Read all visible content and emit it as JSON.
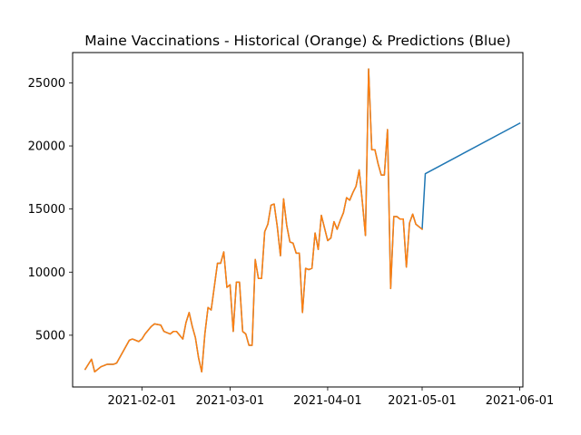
{
  "chart_data": {
    "type": "line",
    "title": "Maine Vaccinations - Historical (Orange) & Predictions (Blue)",
    "xlabel": "",
    "ylabel": "",
    "x_type": "date",
    "xlim": [
      "2021-01-10",
      "2021-06-02"
    ],
    "ylim": [
      900,
      27400
    ],
    "x_ticks": [
      "2021-02-01",
      "2021-03-01",
      "2021-04-01",
      "2021-05-01",
      "2021-06-01"
    ],
    "y_ticks": [
      5000,
      10000,
      15000,
      20000,
      25000
    ],
    "grid": false,
    "legend": "none",
    "series": [
      {
        "color": "#1f77b4",
        "x": [
          "2021-01-14",
          "2021-01-16",
          "2021-01-17",
          "2021-01-19",
          "2021-01-21",
          "2021-01-23",
          "2021-01-24",
          "2021-01-26",
          "2021-01-28",
          "2021-01-29",
          "2021-01-31",
          "2021-02-01",
          "2021-02-02",
          "2021-02-04",
          "2021-02-05",
          "2021-02-07",
          "2021-02-08",
          "2021-02-10",
          "2021-02-11",
          "2021-02-12",
          "2021-02-14",
          "2021-02-15",
          "2021-02-16",
          "2021-02-17",
          "2021-02-18",
          "2021-02-19",
          "2021-02-20",
          "2021-02-21",
          "2021-02-22",
          "2021-02-23",
          "2021-02-25",
          "2021-02-26",
          "2021-02-27",
          "2021-02-28",
          "2021-03-01",
          "2021-03-02",
          "2021-03-03",
          "2021-03-04",
          "2021-03-05",
          "2021-03-06",
          "2021-03-07",
          "2021-03-08",
          "2021-03-09",
          "2021-03-10",
          "2021-03-11",
          "2021-03-12",
          "2021-03-13",
          "2021-03-14",
          "2021-03-15",
          "2021-03-16",
          "2021-03-17",
          "2021-03-18",
          "2021-03-19",
          "2021-03-20",
          "2021-03-21",
          "2021-03-22",
          "2021-03-23",
          "2021-03-24",
          "2021-03-25",
          "2021-03-26",
          "2021-03-27",
          "2021-03-28",
          "2021-03-29",
          "2021-03-30",
          "2021-04-01",
          "2021-04-02",
          "2021-04-03",
          "2021-04-04",
          "2021-04-05",
          "2021-04-06",
          "2021-04-07",
          "2021-04-08",
          "2021-04-09",
          "2021-04-10",
          "2021-04-11",
          "2021-04-12",
          "2021-04-13",
          "2021-04-14",
          "2021-04-15",
          "2021-04-16",
          "2021-04-17",
          "2021-04-18",
          "2021-04-19",
          "2021-04-20",
          "2021-04-21",
          "2021-04-22",
          "2021-04-23",
          "2021-04-24",
          "2021-04-25",
          "2021-04-26",
          "2021-04-27",
          "2021-04-28",
          "2021-04-29",
          "2021-04-30",
          "2021-05-01",
          "2021-05-02",
          "2021-06-01"
        ],
        "y": [
          2300,
          3100,
          2100,
          2500,
          2700,
          2700,
          2800,
          3700,
          4600,
          4700,
          4500,
          4700,
          5100,
          5700,
          5900,
          5800,
          5300,
          5100,
          5300,
          5300,
          4700,
          6000,
          6800,
          5700,
          4800,
          3200,
          2100,
          5100,
          7200,
          7000,
          10700,
          10700,
          11600,
          8800,
          9000,
          5300,
          9200,
          9200,
          5300,
          5100,
          4200,
          4200,
          11000,
          9500,
          9500,
          13200,
          13800,
          15300,
          15400,
          13600,
          11300,
          15800,
          13700,
          12400,
          12300,
          11500,
          11500,
          6800,
          10300,
          10200,
          10300,
          13100,
          11800,
          14500,
          12500,
          12700,
          14000,
          13400,
          14100,
          14700,
          15900,
          15700,
          16300,
          16800,
          18100,
          15600,
          12900,
          26100,
          19700,
          19700,
          18600,
          17700,
          17700,
          21300,
          8700,
          14400,
          14400,
          14200,
          14200,
          10400,
          13900,
          14600,
          13800,
          13600,
          13400,
          17800,
          21800
        ]
      },
      {
        "color": "#ff7f0e",
        "x": [
          "2021-01-14",
          "2021-01-16",
          "2021-01-17",
          "2021-01-19",
          "2021-01-21",
          "2021-01-23",
          "2021-01-24",
          "2021-01-26",
          "2021-01-28",
          "2021-01-29",
          "2021-01-31",
          "2021-02-01",
          "2021-02-02",
          "2021-02-04",
          "2021-02-05",
          "2021-02-07",
          "2021-02-08",
          "2021-02-10",
          "2021-02-11",
          "2021-02-12",
          "2021-02-14",
          "2021-02-15",
          "2021-02-16",
          "2021-02-17",
          "2021-02-18",
          "2021-02-19",
          "2021-02-20",
          "2021-02-21",
          "2021-02-22",
          "2021-02-23",
          "2021-02-25",
          "2021-02-26",
          "2021-02-27",
          "2021-02-28",
          "2021-03-01",
          "2021-03-02",
          "2021-03-03",
          "2021-03-04",
          "2021-03-05",
          "2021-03-06",
          "2021-03-07",
          "2021-03-08",
          "2021-03-09",
          "2021-03-10",
          "2021-03-11",
          "2021-03-12",
          "2021-03-13",
          "2021-03-14",
          "2021-03-15",
          "2021-03-16",
          "2021-03-17",
          "2021-03-18",
          "2021-03-19",
          "2021-03-20",
          "2021-03-21",
          "2021-03-22",
          "2021-03-23",
          "2021-03-24",
          "2021-03-25",
          "2021-03-26",
          "2021-03-27",
          "2021-03-28",
          "2021-03-29",
          "2021-03-30",
          "2021-04-01",
          "2021-04-02",
          "2021-04-03",
          "2021-04-04",
          "2021-04-05",
          "2021-04-06",
          "2021-04-07",
          "2021-04-08",
          "2021-04-09",
          "2021-04-10",
          "2021-04-11",
          "2021-04-12",
          "2021-04-13",
          "2021-04-14",
          "2021-04-15",
          "2021-04-16",
          "2021-04-17",
          "2021-04-18",
          "2021-04-19",
          "2021-04-20",
          "2021-04-21",
          "2021-04-22",
          "2021-04-23",
          "2021-04-24",
          "2021-04-25",
          "2021-04-26",
          "2021-04-27",
          "2021-04-28",
          "2021-04-29",
          "2021-04-30",
          "2021-05-01"
        ],
        "y": [
          2300,
          3100,
          2100,
          2500,
          2700,
          2700,
          2800,
          3700,
          4600,
          4700,
          4500,
          4700,
          5100,
          5700,
          5900,
          5800,
          5300,
          5100,
          5300,
          5300,
          4700,
          6000,
          6800,
          5700,
          4800,
          3200,
          2100,
          5100,
          7200,
          7000,
          10700,
          10700,
          11600,
          8800,
          9000,
          5300,
          9200,
          9200,
          5300,
          5100,
          4200,
          4200,
          11000,
          9500,
          9500,
          13200,
          13800,
          15300,
          15400,
          13600,
          11300,
          15800,
          13700,
          12400,
          12300,
          11500,
          11500,
          6800,
          10300,
          10200,
          10300,
          13100,
          11800,
          14500,
          12500,
          12700,
          14000,
          13400,
          14100,
          14700,
          15900,
          15700,
          16300,
          16800,
          18100,
          15600,
          12900,
          26100,
          19700,
          19700,
          18600,
          17700,
          17700,
          21300,
          8700,
          14400,
          14400,
          14200,
          14200,
          10400,
          13900,
          14600,
          13800,
          13600,
          13400
        ]
      }
    ]
  }
}
